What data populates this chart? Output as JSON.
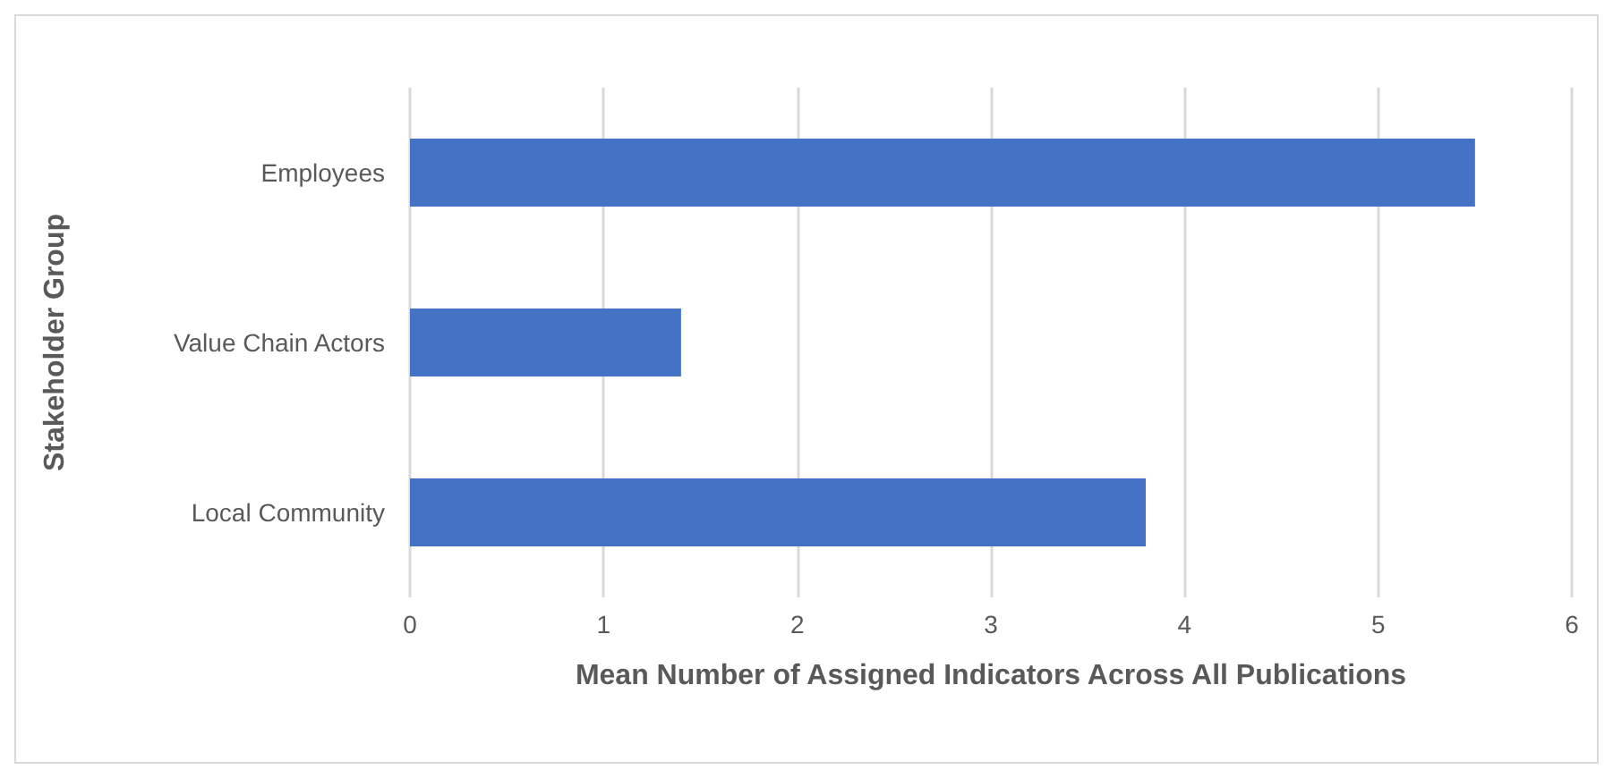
{
  "chart_data": {
    "type": "bar",
    "orientation": "horizontal",
    "xlabel": "Mean Number of Assigned Indicators Across All Publications",
    "ylabel": "Stakeholder Group",
    "categories": [
      "Employees",
      "Value Chain Actors",
      "Local Community"
    ],
    "values": [
      5.5,
      1.4,
      3.8
    ],
    "color": "#4472c4",
    "xlim": [
      0,
      6
    ],
    "xticks": [
      0,
      1,
      2,
      3,
      4,
      5,
      6
    ],
    "grid": "x"
  }
}
